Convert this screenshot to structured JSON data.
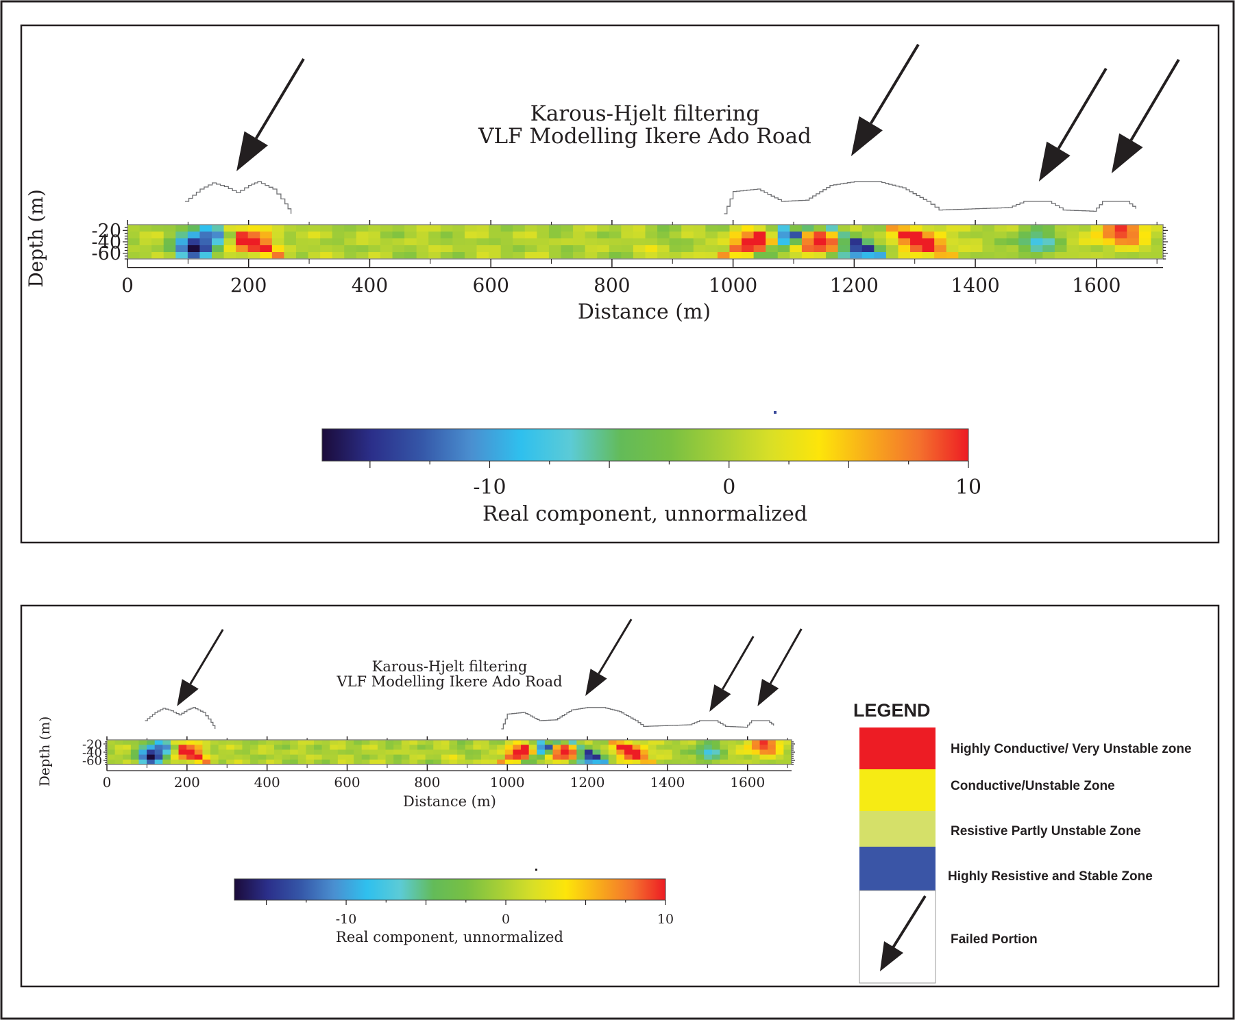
{
  "colors": {
    "scale": [
      "#1b0b3a",
      "#2b2f8a",
      "#3557a8",
      "#4a8fd0",
      "#2fc0ee",
      "#5ccbd6",
      "#63bb59",
      "#78c043",
      "#a7cf36",
      "#d8df27",
      "#fde50a",
      "#f8ab1b",
      "#f4722d",
      "#ed1c24"
    ],
    "legend_red": "#ed1c24",
    "legend_yellow": "#f6eb14",
    "legend_lightgreen": "#d5e069",
    "legend_blue": "#3a55a6"
  },
  "panels": [
    {
      "title_line1": "Karous-Hjelt filtering",
      "title_line2": "VLF Modelling Ikere Ado Road",
      "ylabel": "Depth (m)",
      "xlabel": "Distance (m)",
      "colorbar_label": "Real component, unnormalized"
    },
    {
      "title_line1": "Karous-Hjelt filtering",
      "title_line2": "VLF Modelling Ikere Ado Road",
      "ylabel": "Depth (m)",
      "xlabel": "Distance (m)",
      "colorbar_label": "Real component, unnormalized"
    }
  ],
  "chart_data": {
    "type": "heatmap",
    "title": "Karous-Hjelt filtering VLF Modelling Ikere Ado Road",
    "xlabel": "Distance (m)",
    "ylabel": "Depth (m)",
    "xlim": [
      0,
      1710
    ],
    "ylim": [
      -70,
      -10
    ],
    "x_ticks": [
      0,
      200,
      400,
      600,
      800,
      1000,
      1200,
      1400,
      1600
    ],
    "y_ticks": [
      -20,
      -40,
      -60
    ],
    "colorbar": {
      "label": "Real component, unnormalized",
      "min": -17,
      "max": 10,
      "ticks": [
        -10,
        0,
        10
      ]
    },
    "anomalies": [
      {
        "x": 110,
        "depth": -50,
        "value": -17
      },
      {
        "x": 145,
        "depth": -25,
        "value": -12
      },
      {
        "x": 200,
        "depth": -40,
        "value": 10
      },
      {
        "x": 1040,
        "depth": -40,
        "value": 10
      },
      {
        "x": 1090,
        "depth": -20,
        "value": -16
      },
      {
        "x": 1140,
        "depth": -40,
        "value": 10
      },
      {
        "x": 1200,
        "depth": -60,
        "value": -17
      },
      {
        "x": 1310,
        "depth": -40,
        "value": 10
      },
      {
        "x": 1500,
        "depth": -40,
        "value": -8
      },
      {
        "x": 1640,
        "depth": -25,
        "value": 10
      }
    ],
    "failed_portions_x": [
      200,
      1200,
      1500,
      1640
    ],
    "vlf_profile": [
      [
        95,
        1.0
      ],
      [
        120,
        2.0
      ],
      [
        140,
        2.5
      ],
      [
        160,
        2.2
      ],
      [
        180,
        1.7
      ],
      [
        200,
        2.3
      ],
      [
        215,
        2.6
      ],
      [
        240,
        2.0
      ],
      [
        260,
        0.8
      ],
      [
        270,
        0.0
      ],
      [
        985,
        0.0
      ],
      [
        1000,
        1.8
      ],
      [
        1040,
        2.0
      ],
      [
        1080,
        1.0
      ],
      [
        1120,
        1.1
      ],
      [
        1160,
        2.3
      ],
      [
        1200,
        2.6
      ],
      [
        1240,
        2.6
      ],
      [
        1280,
        2.1
      ],
      [
        1320,
        1.0
      ],
      [
        1340,
        0.3
      ],
      [
        1455,
        0.5
      ],
      [
        1480,
        1.0
      ],
      [
        1520,
        1.0
      ],
      [
        1545,
        0.3
      ],
      [
        1595,
        0.2
      ],
      [
        1610,
        1.0
      ],
      [
        1650,
        1.0
      ],
      [
        1665,
        0.4
      ]
    ]
  },
  "legend": {
    "title": "LEGEND",
    "items": [
      {
        "label": "Highly Conductive/ Very Unstable zone"
      },
      {
        "label": "Conductive/Unstable Zone"
      },
      {
        "label": "Resistive Partly Unstable Zone"
      },
      {
        "label": "Highly Resistive and Stable Zone"
      },
      {
        "label": "Failed Portion"
      }
    ]
  }
}
